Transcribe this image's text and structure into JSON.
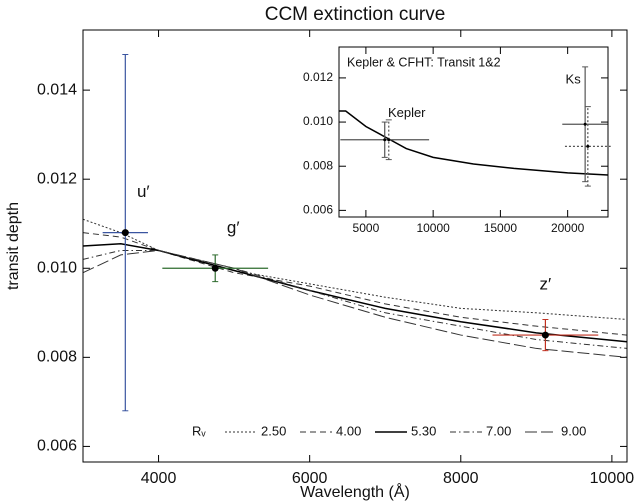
{
  "chart_data": [
    {
      "type": "line",
      "title": "CCM extinction curve",
      "xlabel": "Wavelength (Å)",
      "ylabel": "transit depth",
      "xlim": [
        3000,
        10200
      ],
      "ylim": [
        0.00565,
        0.01535
      ],
      "xticks": [
        4000,
        6000,
        8000,
        10000
      ],
      "yticks": [
        0.006,
        0.008,
        {
          "value": 0.01,
          "label": "0.010"
        },
        0.012,
        0.014
      ],
      "legend_title": "Rᵥ",
      "series": [
        {
          "name": "2.50",
          "color": "#333333",
          "linestyle": "dotted",
          "x": [
            3000,
            3500,
            4000,
            5000,
            6000,
            7000,
            8000,
            9000,
            10200
          ],
          "values": [
            0.0111,
            0.0108,
            0.0104,
            0.00995,
            0.00965,
            0.00935,
            0.0091,
            0.009,
            0.00885
          ]
        },
        {
          "name": "4.00",
          "color": "#333333",
          "linestyle": "dashed",
          "x": [
            3000,
            3500,
            4000,
            5000,
            6000,
            7000,
            8000,
            9000,
            10200
          ],
          "values": [
            0.0108,
            0.0107,
            0.0104,
            0.0099,
            0.0096,
            0.0092,
            0.0089,
            0.0087,
            0.0085
          ]
        },
        {
          "name": "5.30",
          "color": "#000000",
          "linestyle": "solid",
          "x": [
            3000,
            3500,
            4000,
            5000,
            6000,
            7000,
            8000,
            9000,
            10200
          ],
          "values": [
            0.0105,
            0.01055,
            0.0104,
            0.00995,
            0.0095,
            0.0091,
            0.0088,
            0.00855,
            0.00835
          ]
        },
        {
          "name": "7.00",
          "color": "#333333",
          "linestyle": "dashdot",
          "x": [
            3000,
            3500,
            4000,
            5000,
            6000,
            7000,
            8000,
            9000,
            10200
          ],
          "values": [
            0.0102,
            0.0104,
            0.0104,
            0.01,
            0.0095,
            0.009,
            0.0087,
            0.0084,
            0.0082
          ]
        },
        {
          "name": "9.00",
          "color": "#333333",
          "linestyle": "longdash",
          "x": [
            3000,
            3500,
            4000,
            5000,
            6000,
            7000,
            8000,
            9000,
            10200
          ],
          "values": [
            0.0099,
            0.0103,
            0.0104,
            0.01,
            0.0094,
            0.0089,
            0.0085,
            0.0082,
            0.008
          ]
        }
      ],
      "points": [
        {
          "label": "u′",
          "color": "#3a55a0",
          "x": 3560,
          "y": 0.0108,
          "xerr": 300,
          "yerr": 0.004
        },
        {
          "label": "g′",
          "color": "#2e6b2e",
          "x": 4750,
          "y": 0.01,
          "xerr": 700,
          "yerr": 0.0003
        },
        {
          "label": "z′",
          "color": "#c03020",
          "x": 9120,
          "y": 0.0085,
          "xerr": 700,
          "yerr": 0.00035
        }
      ]
    },
    {
      "type": "line",
      "title": "Kepler & CFHT: Transit 1&2",
      "xlim": [
        3000,
        23000
      ],
      "ylim": [
        0.0057,
        0.0134
      ],
      "xticks": [
        5000,
        10000,
        15000,
        20000
      ],
      "yticks": [
        0.006,
        0.008,
        {
          "value": 0.01,
          "label": "0.010"
        },
        0.012
      ],
      "series": [
        {
          "color": "#000000",
          "linestyle": "solid",
          "x": [
            3000,
            3500,
            5000,
            6500,
            8000,
            10000,
            13000,
            16000,
            20000,
            23000
          ],
          "values": [
            0.0105,
            0.0105,
            0.0098,
            0.0093,
            0.0088,
            0.0084,
            0.0081,
            0.0079,
            0.0077,
            0.0076
          ]
        }
      ],
      "points": [
        {
          "label": "Kepler",
          "color": "#555555",
          "linestyle": "solid",
          "x": 6400,
          "y": 0.0092,
          "xerr": 3300,
          "yerr": 0.0008
        },
        {
          "color": "#555555",
          "linestyle": "dotted",
          "x": 6700,
          "y": 0.0092,
          "yerr": 0.0009
        },
        {
          "label": "Ks",
          "color": "#555555",
          "linestyle": "solid",
          "x": 21300,
          "y": 0.0099,
          "xerr": 1700,
          "yerr": 0.0026
        },
        {
          "color": "#555555",
          "linestyle": "dotted",
          "x": 21500,
          "y": 0.0089,
          "xerr": 1700,
          "yerr": 0.0018
        }
      ]
    }
  ]
}
